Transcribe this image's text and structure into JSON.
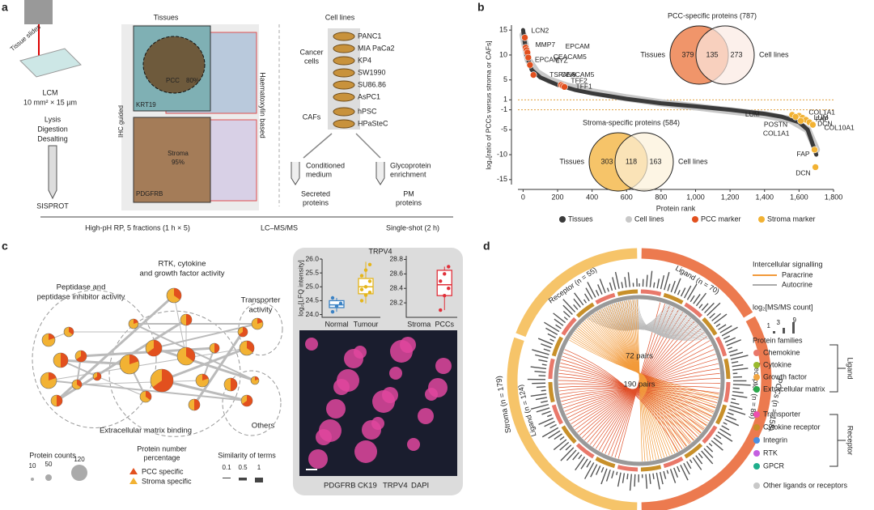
{
  "panel_a": {
    "label": "a",
    "tissues": "Tissues",
    "cell_lines": "Cell lines",
    "tissue_slides": "Tissue slides",
    "lcm": "LCM",
    "lcm_size": "10 mm² × 15 µm",
    "prep": [
      "Lysis",
      "Digestion",
      "Desalting"
    ],
    "sisprot": "SISPROT",
    "ihc": "IHC guided",
    "haematoxylin": "Haematoxylin based",
    "pcc_region": [
      "PCC",
      "80%"
    ],
    "krt19": "KRT19",
    "stroma_region": [
      "Stroma",
      "95%"
    ],
    "pdgfrb": "PDGFRB",
    "cancer_cells": [
      "Cancer",
      "cells"
    ],
    "cancer_lines": [
      "PANC1",
      "MIA PaCa2",
      "KP4",
      "SW1990",
      "SU86.86",
      "AsPC1"
    ],
    "cafs": "CAFs",
    "caf_lines": [
      "hPSC",
      "HPaSteC"
    ],
    "conditioned": [
      "Conditioned",
      "medium"
    ],
    "glyco": [
      "Glycoprotein",
      "enrichment"
    ],
    "secreted": [
      "Secreted",
      "proteins"
    ],
    "pm": [
      "PM",
      "proteins"
    ],
    "hph": "High-pH RP, 5 fractions (1 h × 5)",
    "lcms": "LC–MS/MS",
    "single": "Single-shot (2 h)"
  },
  "panel_b": {
    "label": "b",
    "pcc_venn": {
      "title": "PCC-specific proteins (787)",
      "left": "Tissues",
      "right": "Cell lines",
      "a": 379,
      "ab": 135,
      "b": 273
    },
    "stroma_venn": {
      "title": "Stroma-specific proteins (584)",
      "left": "Tissues",
      "right": "Cell lines",
      "a": 303,
      "ab": 118,
      "b": 163
    }
  },
  "panel_c": {
    "label": "c",
    "clusters": [
      [
        "RTK, cytokine",
        "and growth factor activity"
      ],
      [
        "Peptidase and",
        "peptidase inhibitor activity"
      ],
      [
        "Transporter",
        "activity"
      ],
      [
        "Extracellular matrix binding"
      ],
      [
        "Others"
      ]
    ],
    "counts_title": "Protein counts",
    "counts": [
      10,
      50,
      120
    ],
    "pct_title": [
      "Protein number",
      "percentage"
    ],
    "pct": [
      {
        "name": "PCC specific",
        "color": "#e2501e"
      },
      {
        "name": "Stroma specific",
        "color": "#f2b233"
      }
    ],
    "sim_title": "Similarity of terms",
    "sim": [
      0.1,
      0.5,
      1
    ],
    "stains": [
      {
        "name": "PDGFRB",
        "color": "#22c55e"
      },
      {
        "name": "CK19",
        "color": "#e11d48"
      },
      {
        "name": "TRPV4",
        "color": "#d946ef"
      },
      {
        "name": "DAPI",
        "color": "#3b4bd8"
      }
    ]
  },
  "panel_d": {
    "label": "d",
    "arcs": [
      {
        "name": "Ligand (n = 70)",
        "color": "#ec7a4f"
      },
      {
        "name": "Receptor (n = 88)",
        "color": "#ec7a4f"
      },
      {
        "name": "Ligand (n = 124)",
        "color": "#f6c469"
      },
      {
        "name": "Receptor (n = 55)",
        "color": "#f6c469"
      }
    ],
    "halves": [
      "PCCs (n = 158)",
      "Stroma (n = 179)"
    ],
    "pairs": [
      "72 pairs",
      "190 pairs"
    ],
    "signal_title": "Intercellular signalling",
    "signals": [
      {
        "name": "Paracrine",
        "color": "#f29a3a"
      },
      {
        "name": "Autocrine",
        "color": "#aaaaaa"
      }
    ],
    "count_title": "log₂[MS/MS count]",
    "count_ticks": [
      1,
      3,
      9
    ],
    "families_title": "Protein families",
    "ligand": "Ligand",
    "receptor": "Receptor",
    "ligand_families": [
      {
        "name": "Chemokine",
        "color": "#e9786a"
      },
      {
        "name": "Cytokine",
        "color": "#9aba2e"
      },
      {
        "name": "Growth factor",
        "color": "#f2a541"
      },
      {
        "name": "Extracellular matrix",
        "color": "#2aa84a"
      }
    ],
    "receptor_families": [
      {
        "name": "Transporter",
        "color": "#ee4fb0"
      },
      {
        "name": "Cytokine receptor",
        "color": "#c8902a"
      },
      {
        "name": "Integrin",
        "color": "#4b8fe0"
      },
      {
        "name": "RTK",
        "color": "#c45fe0"
      },
      {
        "name": "GPCR",
        "color": "#1fae8c"
      }
    ],
    "other": {
      "name": "Other ligands or receptors",
      "color": "#c8c8c8"
    }
  },
  "chart_data": [
    {
      "type": "scatter",
      "y_label": "log₂[ratio of PCCs versus stroma or CAFs]",
      "x_label": "Protein rank",
      "xlim": [
        -30,
        1800
      ],
      "ylim": [
        -16,
        16
      ],
      "xticks": [
        0,
        200,
        400,
        600,
        800,
        {
          "value": 1000,
          "label": "1,000"
        },
        {
          "value": 1200,
          "label": "1,200"
        },
        {
          "value": 1400,
          "label": "1,400"
        },
        {
          "value": 1600,
          "label": "1,600"
        },
        {
          "value": 1800,
          "label": "1,800"
        }
      ],
      "yticks": [
        -15,
        -10,
        -5,
        -1,
        1,
        5,
        10,
        15
      ],
      "threshold_lines": [
        1,
        -1
      ],
      "threshold_color": "#e0a040",
      "series": [
        {
          "name": "Tissues",
          "color": "#3a3a3a",
          "x": [
            0,
            20,
            50,
            100,
            200,
            300,
            400,
            600,
            800,
            1000,
            1200,
            1400,
            1500,
            1600,
            1650,
            1680,
            1700
          ],
          "values": [
            15,
            10,
            7,
            5.5,
            4,
            3,
            2.3,
            1.2,
            0.3,
            -0.3,
            -1,
            -1.8,
            -2.4,
            -3.5,
            -5,
            -8,
            -10
          ]
        },
        {
          "name": "Cell lines",
          "color": "#c8c8c8",
          "x": [
            0,
            30,
            80,
            150,
            250,
            400,
            600,
            800,
            1000,
            1200,
            1400,
            1550,
            1650,
            1700
          ],
          "values": [
            14,
            9,
            6.5,
            5,
            3.8,
            2.6,
            1.4,
            0.4,
            -0.4,
            -1.2,
            -2,
            -3,
            -5,
            -9
          ]
        },
        {
          "name": "PCC marker",
          "color": "#e2501e",
          "x": [
            10,
            15,
            20,
            25,
            30,
            40,
            60,
            220,
            230,
            240
          ],
          "values": [
            13.5,
            11.5,
            11,
            10.5,
            9.5,
            8,
            6,
            4,
            3.8,
            3.6
          ],
          "point_labels": [
            "LCN2",
            "MMP7",
            "EPCAM",
            "CEACAM5",
            "LYZ",
            "EPCAM",
            "TSPAN8",
            "CEACAM5",
            "TFF2",
            "TFF1"
          ]
        },
        {
          "name": "Stroma marker",
          "color": "#f2b233",
          "x": [
            1600,
            1620,
            1640,
            1660,
            1560,
            1580,
            1610,
            1680,
            1690,
            1695
          ],
          "values": [
            -2.2,
            -2.6,
            -3,
            -3.5,
            -2,
            -2.4,
            -3.2,
            -4,
            -9,
            -12.5
          ],
          "point_labels": [
            "COL1A1",
            "LUM",
            "FAP",
            "DCN",
            "LUM",
            "POSTN",
            "COL1A1",
            "COL10A1",
            "FAP",
            "DCN"
          ]
        }
      ]
    },
    {
      "type": "box",
      "title": "TRPV4",
      "y_label": "log₂[LFQ intensity]",
      "categories": [
        "Normal",
        "Tumour"
      ],
      "colors": [
        "#3b82c4",
        "#e5b51a"
      ],
      "ylim": [
        23.9,
        26.0
      ],
      "yticks": [
        {
          "value": 24,
          "label": "24.0"
        },
        24.5,
        {
          "value": 25,
          "label": "25.0"
        },
        25.5,
        {
          "value": 26,
          "label": "26.0"
        }
      ],
      "boxes": [
        {
          "min": 24.1,
          "q1": 24.25,
          "median": 24.35,
          "q3": 24.5,
          "max": 24.6,
          "points": [
            24.1,
            24.3,
            24.4,
            24.6
          ]
        },
        {
          "min": 24.4,
          "q1": 24.75,
          "median": 25.0,
          "q3": 25.3,
          "max": 25.9,
          "points": [
            24.5,
            24.7,
            24.8,
            24.9,
            25.0,
            25.2,
            25.4,
            25.6,
            25.8
          ]
        }
      ]
    },
    {
      "type": "box",
      "categories": [
        "Stroma",
        "PCCs"
      ],
      "colors": [
        "#888888",
        "#e0303a"
      ],
      "ylim": [
        28.0,
        28.85
      ],
      "yticks": [
        28.2,
        28.4,
        28.6,
        28.8
      ],
      "boxes": [
        null,
        {
          "min": 28.1,
          "q1": 28.3,
          "median": 28.45,
          "q3": 28.65,
          "max": 28.7,
          "points": [
            28.1,
            28.3,
            28.4,
            28.5,
            28.6,
            28.7
          ]
        }
      ]
    }
  ]
}
